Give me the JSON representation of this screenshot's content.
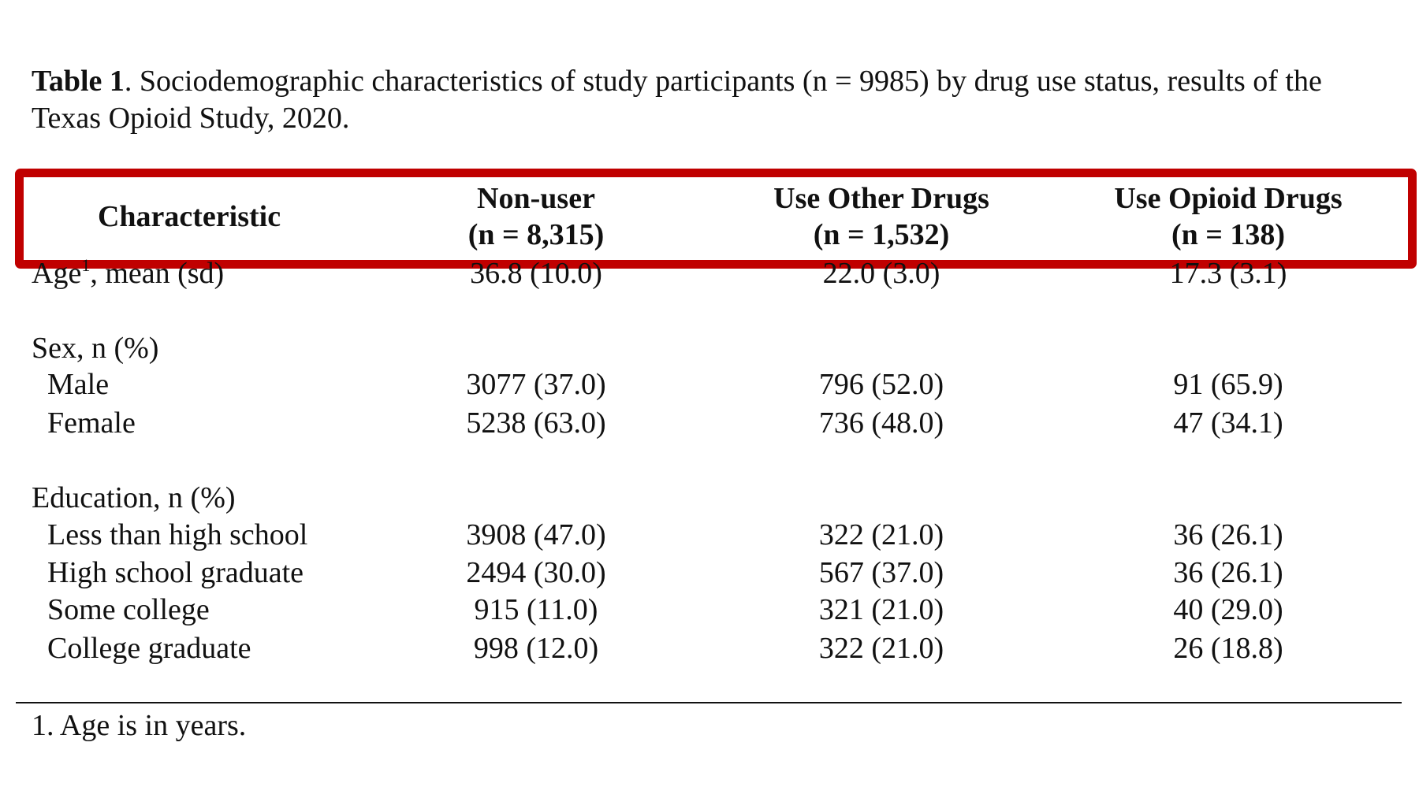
{
  "caption": {
    "label": "Table 1",
    "text": ". Sociodemographic characteristics of study participants (n = 9985) by drug use status, results of the Texas Opioid Study, 2020."
  },
  "header": {
    "characteristic": "Characteristic",
    "col1_title": "Non-user",
    "col1_n": "(n = 8,315)",
    "col2_title": "Use Other Drugs",
    "col2_n": "(n = 1,532)",
    "col3_title": "Use Opioid Drugs",
    "col3_n": "(n = 138)"
  },
  "rows": {
    "age": {
      "label_pre": "Age",
      "label_sup": "1",
      "label_post": ", mean (sd)",
      "c1": "36.8 (10.0)",
      "c2": "22.0 (3.0)",
      "c3": "17.3 (3.1)"
    },
    "sex_heading": "Sex, n (%)",
    "male": {
      "label": "Male",
      "c1": "3077 (37.0)",
      "c2": "796 (52.0)",
      "c3": "91 (65.9)"
    },
    "female": {
      "label": "Female",
      "c1": "5238 (63.0)",
      "c2": "736 (48.0)",
      "c3": "47 (34.1)"
    },
    "education_heading": "Education, n (%)",
    "lths": {
      "label": "Less than high school",
      "c1": "3908 (47.0)",
      "c2": "322 (21.0)",
      "c3": "36 (26.1)"
    },
    "hsg": {
      "label": "High school graduate",
      "c1": "2494 (30.0)",
      "c2": "567 (37.0)",
      "c3": "36 (26.1)"
    },
    "somecol": {
      "label": "Some college",
      "c1": "915 (11.0)",
      "c2": "321 (21.0)",
      "c3": "40 (29.0)"
    },
    "colgrad": {
      "label": "College graduate",
      "c1": "998 (12.0)",
      "c2": "322 (21.0)",
      "c3": "26 (18.8)"
    }
  },
  "footnote": "1. Age is in years.",
  "colors": {
    "highlight": "#c00000"
  }
}
